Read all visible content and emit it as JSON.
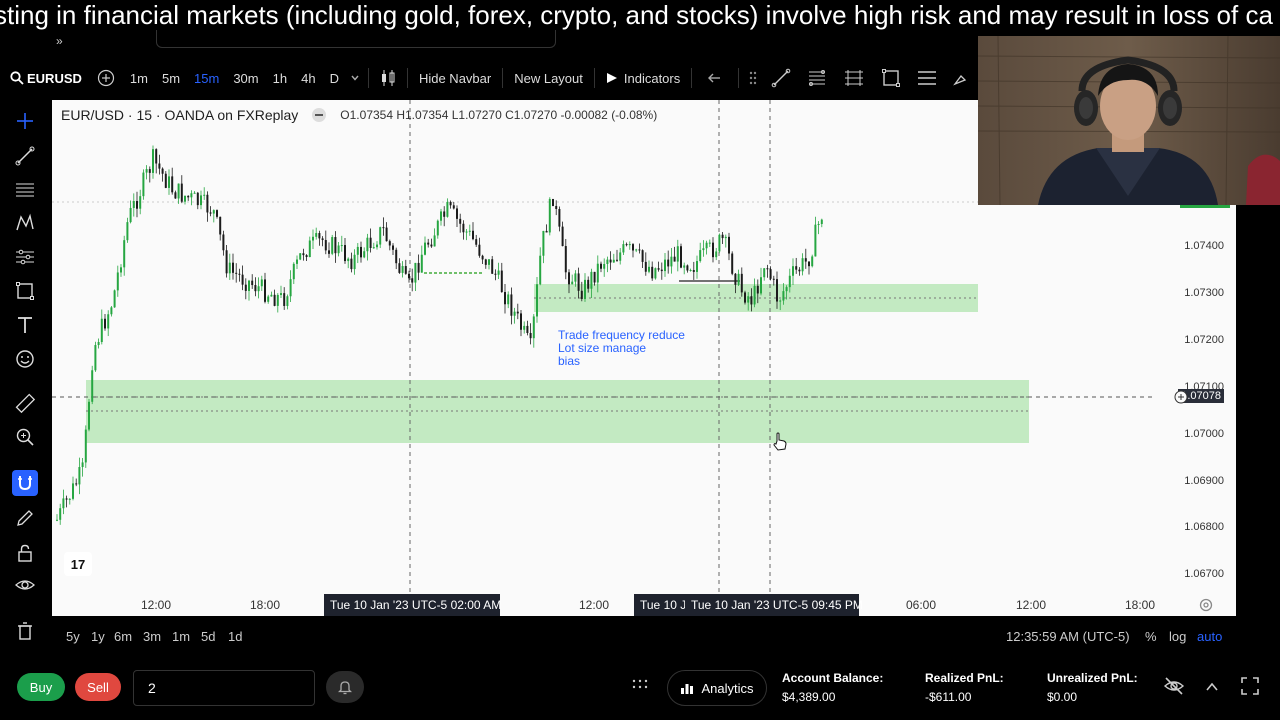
{
  "banner": {
    "text": "sting in financial markets (including gold, forex, crypto, and stocks) involve high risk and may result in loss of ca"
  },
  "toolbar": {
    "symbol": "EURUSD",
    "intervals": [
      "1m",
      "5m",
      "15m",
      "30m",
      "1h",
      "4h",
      "D"
    ],
    "active_interval": "15m",
    "hide_navbar": "Hide Navbar",
    "new_layout": "New Layout",
    "indicators": "Indicators"
  },
  "chart": {
    "title": "EUR/USD · 15 · OANDA on FXReplay",
    "ohlc": "O1.07354 H1.07354 L1.07270 C1.07270 -0.00082 (-0.08%)",
    "annotation": [
      "Trade frequency reduce",
      "Lot size manage",
      "bias"
    ],
    "price_labels": [
      "1.07400",
      "1.07300",
      "1.07200",
      "1.07100",
      "1.07000",
      "1.06900",
      "1.06800",
      "1.06700"
    ],
    "current_price": "1.07078",
    "time_labels": [
      "12:00",
      "18:00",
      "12:00",
      "06:00",
      "12:00",
      "18:00"
    ],
    "time_tag_1": "Tue 10 Jan '23 UTC-5   02:00 AM",
    "time_tag_2a": "Tue 10 J",
    "time_tag_2b": "Tue 10 Jan '23 UTC-5   09:45 PM",
    "tv_logo": "17",
    "colors": {
      "zone": "#b9e6b7",
      "bull": "#26a641",
      "bear": "#1b1b1b",
      "accent": "#2962ff"
    }
  },
  "rangebar": {
    "ranges": [
      "5y",
      "1y",
      "6m",
      "3m",
      "1m",
      "5d",
      "1d"
    ],
    "clock": "12:35:59 AM (UTC-5)",
    "percent": "%",
    "log": "log",
    "auto": "auto"
  },
  "bottom": {
    "buy": "Buy",
    "sell": "Sell",
    "quantity": "2",
    "analytics": "Analytics",
    "account_balance_label": "Account Balance:",
    "account_balance": "$4,389.00",
    "realized_label": "Realized PnL:",
    "realized": "-$611.00",
    "unrealized_label": "Unrealized PnL:",
    "unrealized": "$0.00"
  }
}
